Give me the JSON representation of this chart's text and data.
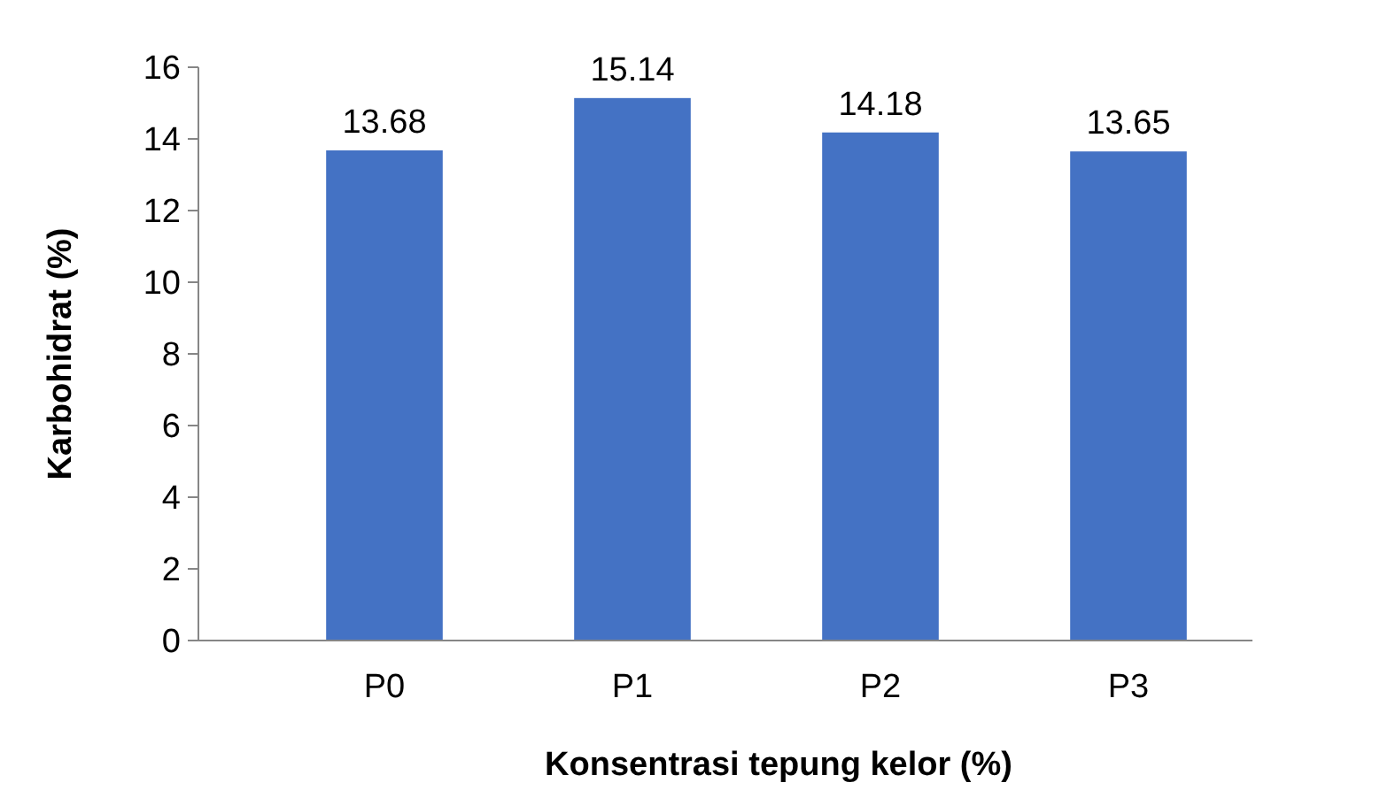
{
  "chart_data": {
    "type": "bar",
    "xlabel": "Konsentrasi tepung kelor (%)",
    "ylabel": "Karbohidrat (%)",
    "categories": [
      "P0",
      "P1",
      "P2",
      "P3"
    ],
    "values": [
      13.68,
      15.14,
      14.18,
      13.65
    ],
    "color": "#4472c4",
    "ylim": [
      0,
      16
    ],
    "yticks": [
      0,
      2,
      4,
      6,
      8,
      10,
      12,
      14,
      16
    ],
    "data_labels": true,
    "grid": false
  }
}
